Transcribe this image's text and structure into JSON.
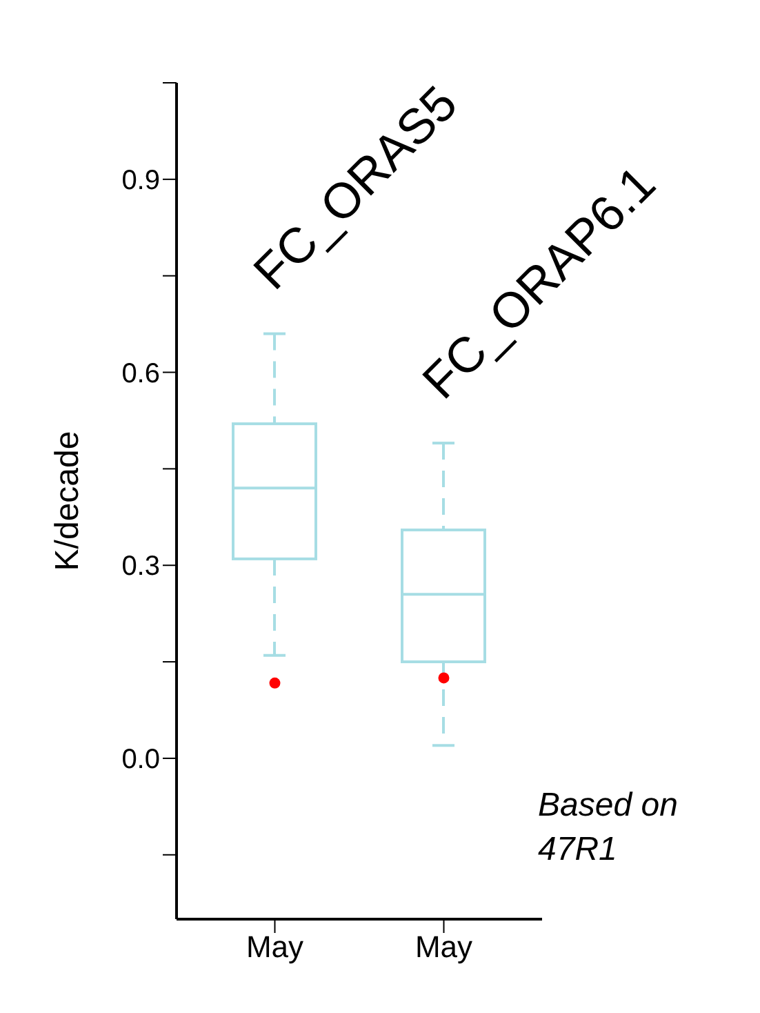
{
  "chart_data": {
    "type": "box",
    "ylabel": "K/decade",
    "categories": [
      "May",
      "May"
    ],
    "boxes": [
      {
        "low": 0.16,
        "q1": 0.31,
        "median": 0.42,
        "q3": 0.52,
        "high": 0.66
      },
      {
        "low": 0.02,
        "q1": 0.15,
        "median": 0.255,
        "q3": 0.355,
        "high": 0.49
      }
    ],
    "color": "#a6dde4",
    "series": [
      {
        "type": "scatter",
        "values": [
          0.117,
          0.125
        ],
        "color": "#ff0000"
      }
    ],
    "annotations": [
      "FC_ORAS5",
      "FC_ORAP6.1",
      "Based on 47R1"
    ],
    "ylim": [
      -0.25,
      1.05
    ],
    "yticks": [
      {
        "value": -0.15,
        "label": null
      },
      {
        "value": 0,
        "label": "0.0"
      },
      {
        "value": 0.15,
        "label": null
      },
      0.3,
      {
        "value": 0.45,
        "label": null
      },
      0.6,
      {
        "value": 0.75,
        "label": null
      },
      0.9,
      {
        "value": 1.05,
        "label": null
      }
    ],
    "grid": false,
    "legend": false
  }
}
